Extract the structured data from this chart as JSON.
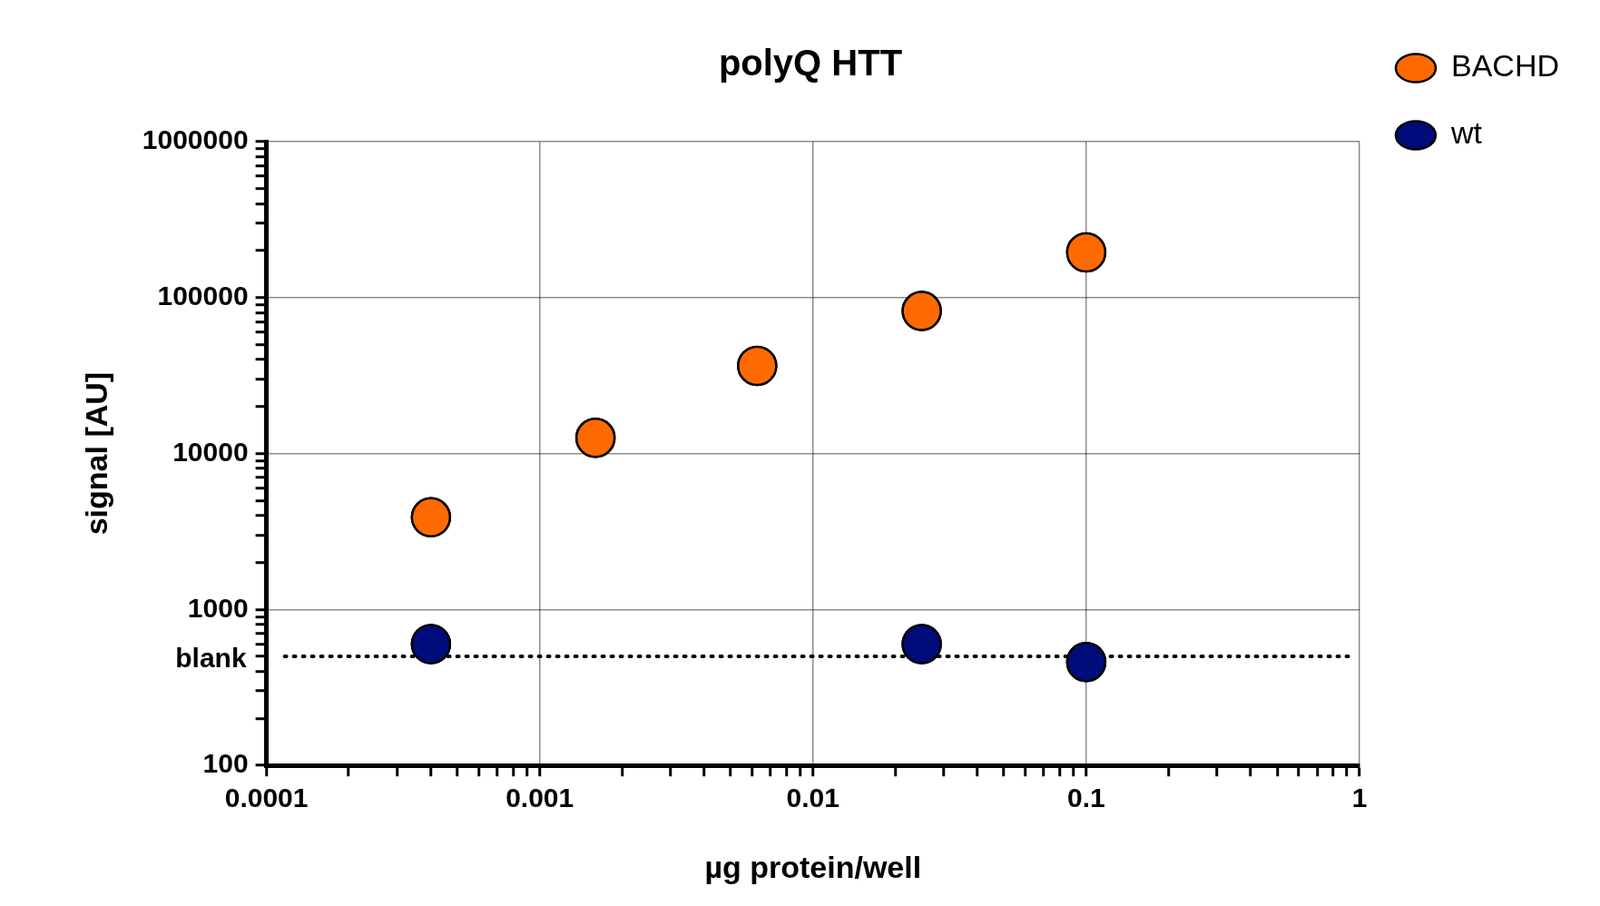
{
  "chart_data": {
    "type": "scatter",
    "title": "polyQ HTT",
    "xlabel": "µg protein/well",
    "ylabel": "signal [AU]",
    "log": "xy",
    "grid": true,
    "legend": "top right",
    "marker": "circle",
    "xlim": [
      0.0001,
      1
    ],
    "ylim": [
      100,
      1000000
    ],
    "xticks": [
      0.0001,
      {
        "value": 0.0002,
        "label": null
      },
      {
        "value": 0.0003,
        "label": null
      },
      {
        "value": 0.0004,
        "label": null
      },
      {
        "value": 0.0005,
        "label": null
      },
      {
        "value": 0.0006,
        "label": null
      },
      {
        "value": 0.0007,
        "label": null
      },
      {
        "value": 0.0008,
        "label": null
      },
      {
        "value": 0.0009,
        "label": null
      },
      0.001,
      {
        "value": 0.002,
        "label": null
      },
      {
        "value": 0.003,
        "label": null
      },
      {
        "value": 0.004,
        "label": null
      },
      {
        "value": 0.005,
        "label": null
      },
      {
        "value": 0.006,
        "label": null
      },
      {
        "value": 0.007,
        "label": null
      },
      {
        "value": 0.008,
        "label": null
      },
      {
        "value": 0.009,
        "label": null
      },
      0.01,
      {
        "value": 0.02,
        "label": null
      },
      {
        "value": 0.03,
        "label": null
      },
      {
        "value": 0.04,
        "label": null
      },
      {
        "value": 0.05,
        "label": null
      },
      {
        "value": 0.06,
        "label": null
      },
      {
        "value": 0.07,
        "label": null
      },
      {
        "value": 0.08,
        "label": null
      },
      {
        "value": 0.09,
        "label": null
      },
      0.1,
      {
        "value": 0.2,
        "label": null
      },
      {
        "value": 0.3,
        "label": null
      },
      {
        "value": 0.4,
        "label": null
      },
      {
        "value": 0.5,
        "label": null
      },
      {
        "value": 0.6,
        "label": null
      },
      {
        "value": 0.7,
        "label": null
      },
      {
        "value": 0.8,
        "label": null
      },
      {
        "value": 0.9,
        "label": null
      },
      1
    ],
    "yticks": [
      100,
      {
        "value": 200,
        "label": null
      },
      {
        "value": 300,
        "label": null
      },
      {
        "value": 400,
        "label": null
      },
      {
        "value": 500,
        "label": null
      },
      {
        "value": 600,
        "label": null
      },
      {
        "value": 700,
        "label": null
      },
      {
        "value": 800,
        "label": null
      },
      {
        "value": 900,
        "label": null
      },
      1000,
      {
        "value": 2000,
        "label": null
      },
      {
        "value": 3000,
        "label": null
      },
      {
        "value": 4000,
        "label": null
      },
      {
        "value": 5000,
        "label": null
      },
      {
        "value": 6000,
        "label": null
      },
      {
        "value": 7000,
        "label": null
      },
      {
        "value": 8000,
        "label": null
      },
      {
        "value": 9000,
        "label": null
      },
      10000,
      {
        "value": 20000,
        "label": null
      },
      {
        "value": 30000,
        "label": null
      },
      {
        "value": 40000,
        "label": null
      },
      {
        "value": 50000,
        "label": null
      },
      {
        "value": 60000,
        "label": null
      },
      {
        "value": 70000,
        "label": null
      },
      {
        "value": 80000,
        "label": null
      },
      {
        "value": 90000,
        "label": null
      },
      100000,
      {
        "value": 200000,
        "label": null
      },
      {
        "value": 300000,
        "label": null
      },
      {
        "value": 400000,
        "label": null
      },
      {
        "value": 500000,
        "label": null
      },
      {
        "value": 600000,
        "label": null
      },
      {
        "value": 700000,
        "label": null
      },
      {
        "value": 800000,
        "label": null
      },
      {
        "value": 900000,
        "label": null
      },
      1000000
    ],
    "series": [
      {
        "name": "BACHD",
        "color": "#ff6a00",
        "x": [
          0.0004,
          0.0016,
          0.00625,
          0.025,
          0.1
        ],
        "values": [
          3900,
          12600,
          36500,
          82000,
          195000
        ]
      },
      {
        "name": "wt",
        "color": "#000c7a",
        "x": [
          0.0004,
          0.025,
          0.1
        ],
        "values": [
          600,
          600,
          460
        ]
      }
    ],
    "ref_lines": [
      {
        "axis": "y",
        "value": 500,
        "label": "blank",
        "color": "#000000",
        "line_style": "dotted"
      }
    ]
  }
}
